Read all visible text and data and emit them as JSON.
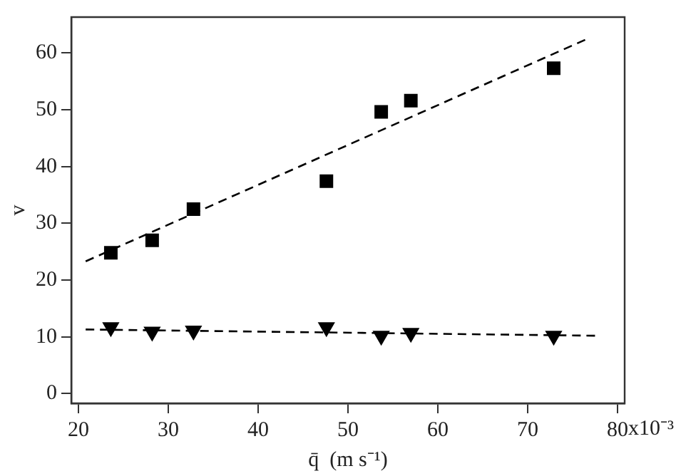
{
  "chart_data": {
    "type": "scatter",
    "xlabel": "q̄  (m s⁻¹)",
    "ylabel": "v",
    "xlim": [
      19.2,
      80.8
    ],
    "xticks": [
      20,
      30,
      40,
      50,
      60,
      70,
      80
    ],
    "ylim": [
      -1.7,
      66.3
    ],
    "yticks": [
      0,
      10,
      20,
      30,
      40,
      50,
      60
    ],
    "grid": false,
    "legend": false,
    "annotations": [
      "x10⁻³"
    ],
    "series": [
      {
        "type": "scatter",
        "color": "#000000",
        "marker": "square",
        "x": [
          23.6,
          28.2,
          32.8,
          47.6,
          53.7,
          57.0,
          72.9
        ],
        "values": [
          24.8,
          27,
          32.5,
          37.4,
          49.6,
          51.6,
          57.3
        ]
      },
      {
        "type": "scatter",
        "color": "#000000",
        "marker": "triangle",
        "x": [
          23.6,
          28.2,
          32.8,
          47.6,
          53.7,
          57.0,
          72.9
        ],
        "values": [
          11.7,
          10.9,
          11.1,
          11.7,
          10.2,
          10.7,
          10.2
        ]
      },
      {
        "type": "line",
        "color": "#000000",
        "marker": "none",
        "line_style": "dashed",
        "x": [
          20.8,
          76.4
        ],
        "values": [
          23.3,
          62.3
        ]
      },
      {
        "type": "line",
        "color": "#000000",
        "marker": "none",
        "line_style": "dashed",
        "x": [
          20.8,
          77.5
        ],
        "values": [
          11.3,
          10.2
        ]
      }
    ]
  }
}
